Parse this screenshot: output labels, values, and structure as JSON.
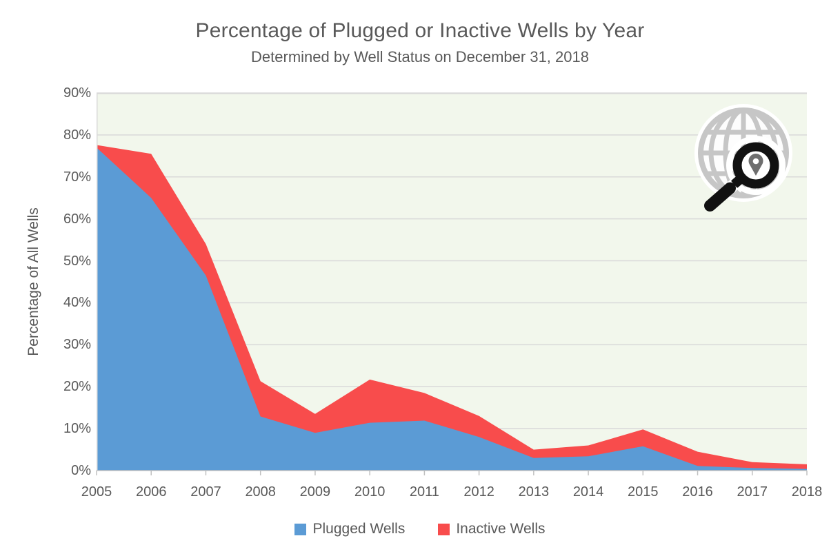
{
  "chart_data": {
    "type": "area",
    "stacked": true,
    "title": "Percentage of Plugged or Inactive Wells by Year",
    "subtitle": "Determined by Well Status on December 31, 2018",
    "ylabel": "Percentage of All Wells",
    "xlabel": "",
    "categories": [
      "2005",
      "2006",
      "2007",
      "2008",
      "2009",
      "2010",
      "2011",
      "2012",
      "2013",
      "2014",
      "2015",
      "2016",
      "2017",
      "2018"
    ],
    "series": [
      {
        "name": "Plugged Wells",
        "color": "#5B9BD5",
        "values": [
          77.0,
          65.0,
          46.5,
          12.9,
          9.0,
          11.4,
          11.9,
          8.0,
          3.0,
          3.4,
          5.8,
          1.1,
          0.6,
          0.4
        ]
      },
      {
        "name": "Inactive Wells",
        "color": "#F84C4C",
        "values": [
          0.6,
          10.5,
          7.5,
          8.4,
          4.5,
          10.3,
          6.6,
          5.0,
          2.0,
          2.6,
          4.0,
          3.4,
          1.4,
          1.1
        ]
      }
    ],
    "ylim": [
      0,
      90
    ],
    "ytick_step": 10,
    "ytick_labels": [
      "0%",
      "10%",
      "20%",
      "30%",
      "40%",
      "50%",
      "60%",
      "70%",
      "80%",
      "90%"
    ],
    "grid": true,
    "legend_position": "bottom",
    "plot_bg": "#F2F7EC",
    "grid_color": "#D9D9D9",
    "axis_color": "#C0C0C0",
    "text_color": "#595959",
    "logo": "globe-location-search-logo"
  }
}
